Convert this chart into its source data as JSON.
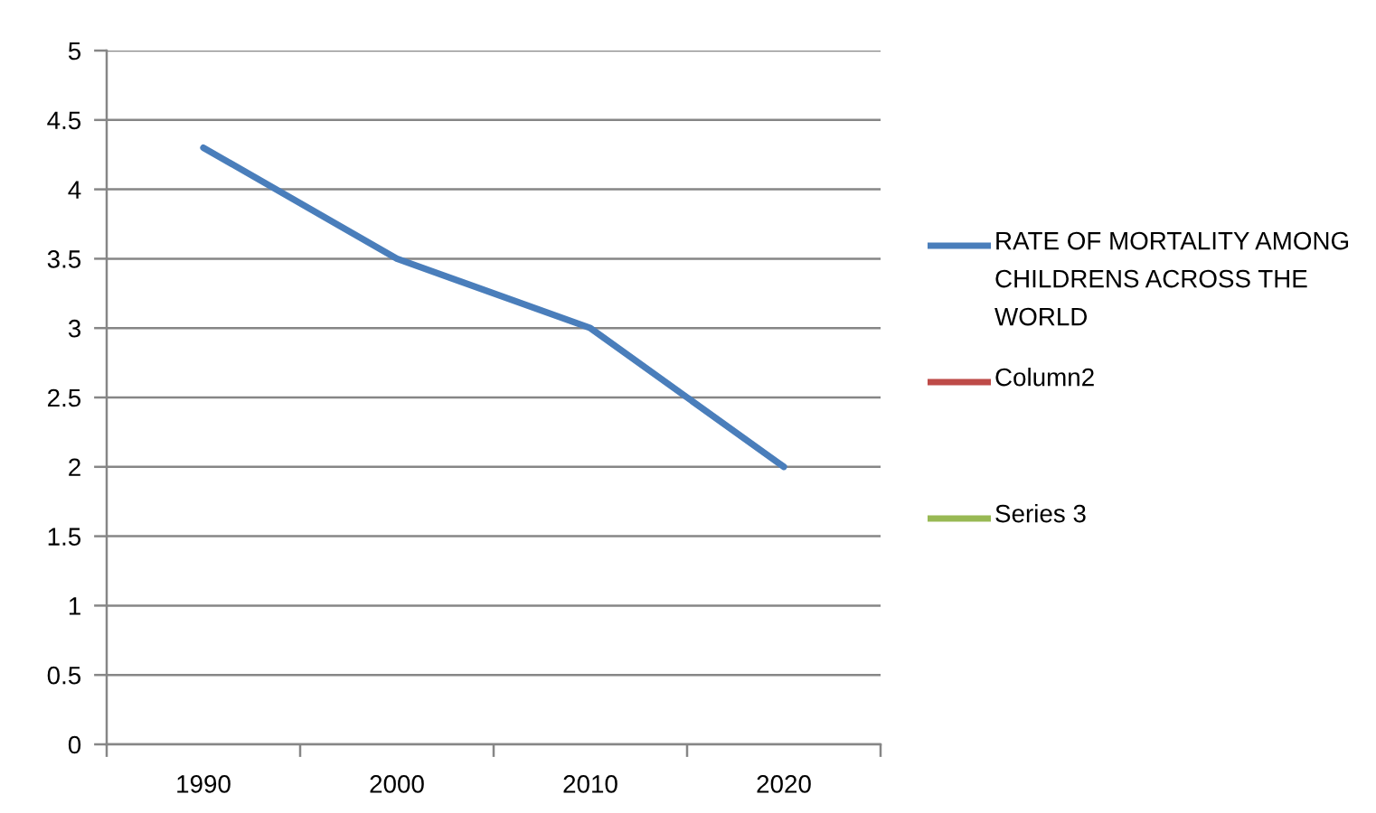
{
  "chart_data": {
    "type": "line",
    "categories": [
      "1990",
      "2000",
      "2010",
      "2020"
    ],
    "series": [
      {
        "name": "RATE OF MORTALITY AMONG CHILDRENS ACROSS THE WORLD",
        "color": "#4a7ebb",
        "values": [
          4.3,
          3.5,
          3.0,
          2.0
        ]
      },
      {
        "name": "Column2",
        "color": "#be4b48",
        "values": [
          null,
          null,
          null,
          null
        ]
      },
      {
        "name": "Series 3",
        "color": "#98b954",
        "values": [
          null,
          null,
          null,
          null
        ]
      }
    ],
    "ylim": [
      0,
      5
    ],
    "yticks": [
      0,
      0.5,
      1,
      1.5,
      2,
      2.5,
      3,
      3.5,
      4,
      4.5,
      5
    ],
    "grid": "y",
    "legend": "right"
  }
}
